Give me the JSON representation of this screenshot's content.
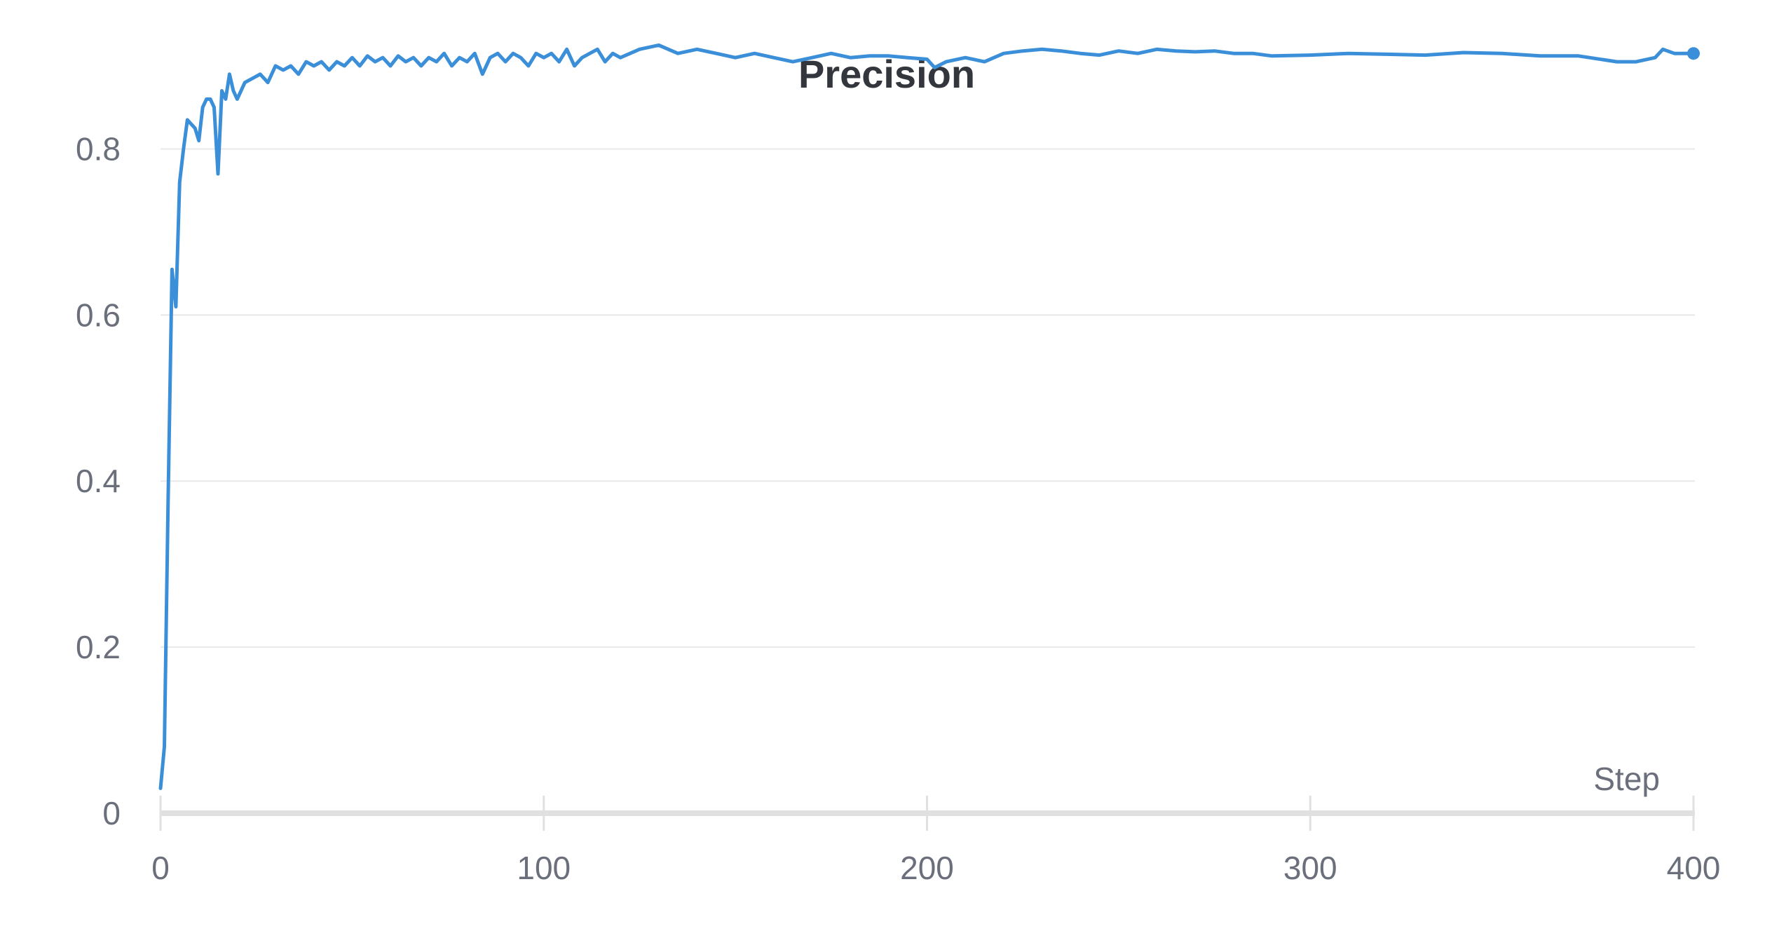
{
  "chart_data": {
    "type": "line",
    "title": "Precision",
    "xlabel": "Step",
    "ylabel": "",
    "xlim": [
      0,
      400
    ],
    "ylim": [
      0,
      0.9
    ],
    "x_ticks": [
      0,
      100,
      200,
      300,
      400
    ],
    "y_ticks": [
      0,
      0.2,
      0.4,
      0.6,
      0.8
    ],
    "x_tick_labels": [
      "0",
      "100",
      "200",
      "300",
      "400"
    ],
    "y_tick_labels": [
      "0",
      "0.2",
      "0.4",
      "0.6",
      "0.8"
    ],
    "grid": true,
    "colors": {
      "line": "#3b8fd9",
      "grid": "#e8e8e8",
      "axis": "#e0e0e0",
      "text": "#6b6f7c",
      "title": "#33363d"
    },
    "series": [
      {
        "name": "",
        "x": [
          0,
          1,
          2,
          3,
          4,
          5,
          6,
          7,
          8,
          9,
          10,
          11,
          12,
          13,
          14,
          15,
          16,
          17,
          18,
          19,
          20,
          22,
          24,
          26,
          28,
          30,
          32,
          34,
          36,
          38,
          40,
          42,
          44,
          46,
          48,
          50,
          52,
          54,
          56,
          58,
          60,
          62,
          64,
          66,
          68,
          70,
          72,
          74,
          76,
          78,
          80,
          82,
          84,
          86,
          88,
          90,
          92,
          94,
          96,
          98,
          100,
          102,
          104,
          106,
          108,
          110,
          112,
          114,
          116,
          118,
          120,
          125,
          130,
          135,
          140,
          145,
          150,
          155,
          160,
          165,
          170,
          175,
          180,
          185,
          190,
          195,
          200,
          202,
          205,
          210,
          215,
          220,
          225,
          230,
          235,
          240,
          245,
          250,
          255,
          260,
          265,
          270,
          275,
          280,
          285,
          290,
          300,
          310,
          320,
          330,
          340,
          350,
          360,
          370,
          380,
          385,
          390,
          392,
          395,
          400
        ],
        "y": [
          0.03,
          0.08,
          0.38,
          0.655,
          0.61,
          0.76,
          0.8,
          0.835,
          0.83,
          0.825,
          0.81,
          0.85,
          0.86,
          0.86,
          0.85,
          0.77,
          0.87,
          0.86,
          0.89,
          0.87,
          0.86,
          0.88,
          0.885,
          0.89,
          0.88,
          0.9,
          0.895,
          0.9,
          0.89,
          0.905,
          0.9,
          0.905,
          0.895,
          0.905,
          0.9,
          0.91,
          0.9,
          0.912,
          0.905,
          0.91,
          0.9,
          0.912,
          0.905,
          0.91,
          0.9,
          0.91,
          0.905,
          0.915,
          0.9,
          0.91,
          0.905,
          0.915,
          0.89,
          0.91,
          0.915,
          0.905,
          0.915,
          0.91,
          0.9,
          0.915,
          0.91,
          0.915,
          0.905,
          0.92,
          0.9,
          0.91,
          0.915,
          0.92,
          0.905,
          0.915,
          0.91,
          0.92,
          0.925,
          0.915,
          0.92,
          0.915,
          0.91,
          0.915,
          0.91,
          0.905,
          0.91,
          0.915,
          0.91,
          0.912,
          0.912,
          0.91,
          0.908,
          0.898,
          0.905,
          0.91,
          0.905,
          0.915,
          0.918,
          0.92,
          0.918,
          0.915,
          0.913,
          0.918,
          0.915,
          0.92,
          0.918,
          0.917,
          0.918,
          0.915,
          0.915,
          0.912,
          0.913,
          0.915,
          0.914,
          0.913,
          0.916,
          0.915,
          0.912,
          0.912,
          0.905,
          0.905,
          0.91,
          0.92,
          0.915,
          0.915
        ]
      }
    ]
  }
}
